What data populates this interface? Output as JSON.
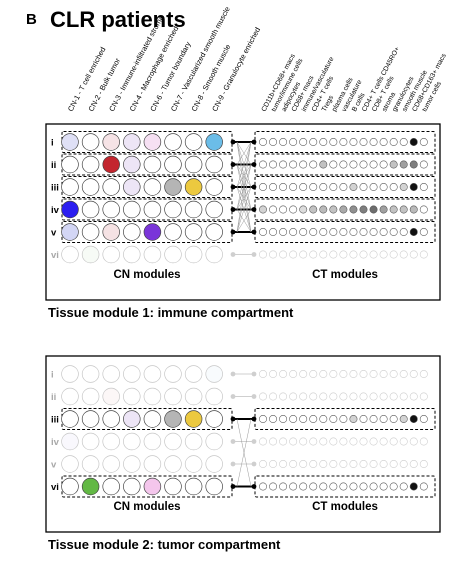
{
  "figure": {
    "panel_letter": "B",
    "title": "CLR patients"
  },
  "cn_labels": [
    "CN-1 - T cell enriched",
    "CN-2 - Bulk tumor",
    "CN-3 - Immune-infiltrated stroma",
    "CN-4 - Macrophage enriched",
    "CN-6 - Tumor boundary",
    "CN-7 - Vascularized smooth muscle",
    "CN-8 - Smooth muscle",
    "CN-9 - Granulocyte enriched"
  ],
  "ct_labels": [
    "CD11b+CD68+ macs",
    "tumor/immune cells",
    "adipocytes",
    "CD68+ macs",
    "immune/vasculature",
    "CD4+ T cells",
    "Tregs",
    "plasma cells",
    "vasculature",
    "B cells",
    "CD4+ T cells CD45RO+",
    "CD8+ T cells",
    "stroma",
    "granulocytes",
    "smooth muscle",
    "CD68+CD163+ macs",
    "tumor cells"
  ],
  "colors": {
    "cn_circles": [
      "#dcdcf7",
      "#ffffff",
      "#c4262e",
      "#e6dcf4",
      "#f0c8ec",
      "#ffffff",
      "#ffffff",
      "#69bde6"
    ],
    "blue": "#2b1ef0",
    "purple": "#7a35d9",
    "gray": "#b4b4b4",
    "yellow": "#ecc93f",
    "pink": "#f4c6ec",
    "green": "#62b844",
    "light_blue": "#e4ecfa"
  },
  "tissue_modules": [
    {
      "title": "Tissue module 1: immune compartment",
      "cn_header": "CN modules",
      "ct_header": "CT modules",
      "rows": [
        {
          "label": "i",
          "active": true,
          "cn": [
            "#dfe0f6",
            "#ffffff",
            "#f6e3e6",
            "#ede5f6",
            "#f6e0f3",
            "#ffffff",
            "#ffffff",
            "#6bbde8"
          ],
          "ct": [
            0,
            0,
            0,
            0,
            0,
            0,
            0,
            0,
            0,
            0,
            0,
            0,
            0,
            0,
            0,
            1,
            0
          ]
        },
        {
          "label": "ii",
          "active": true,
          "cn": [
            "#ffffff",
            "#ffffff",
            "#c3252e",
            "#ede5f6",
            "#ffffff",
            "#ffffff",
            "#ffffff",
            "#ffffff"
          ],
          "ct": [
            0,
            0,
            0,
            0,
            0,
            0,
            0.3,
            0,
            0,
            0,
            0,
            0,
            0,
            0.3,
            0.5,
            0.7,
            0
          ]
        },
        {
          "label": "iii",
          "active": true,
          "cn": [
            "#ffffff",
            "#ffffff",
            "#ffffff",
            "#ede5f6",
            "#ffffff",
            "#b5b5b5",
            "#ecc93f",
            "#ffffff"
          ],
          "ct": [
            0,
            0,
            0,
            0,
            0,
            0,
            0,
            0,
            0,
            0.2,
            0,
            0,
            0,
            0,
            0.2,
            1,
            0
          ]
        },
        {
          "label": "iv",
          "active": true,
          "cn": [
            "#2b1ef0",
            "#ffffff",
            "#ffffff",
            "#ffffff",
            "#ffffff",
            "#ffffff",
            "#ffffff",
            "#ffffff"
          ],
          "ct": [
            0.2,
            0,
            0,
            0,
            0.15,
            0.3,
            0.35,
            0.3,
            0.45,
            0.6,
            0.7,
            0.8,
            0.5,
            0.3,
            0.3,
            0.35,
            0
          ]
        },
        {
          "label": "v",
          "active": true,
          "cn": [
            "#d3d6f5",
            "#ffffff",
            "#f5e2e4",
            "#ffffff",
            "#7a35d9",
            "#ffffff",
            "#ffffff",
            "#ffffff"
          ],
          "ct": [
            0,
            0,
            0,
            0,
            0,
            0,
            0,
            0,
            0,
            0,
            0,
            0,
            0,
            0,
            0,
            1,
            0
          ]
        },
        {
          "label": "vi",
          "active": false,
          "cn": [
            "#ffffff",
            "#e6f3e3",
            "#ffffff",
            "#ffffff",
            "#ffffff",
            "#ffffff",
            "#ffffff",
            "#ffffff"
          ],
          "ct": [
            0,
            0,
            0,
            0,
            0,
            0,
            0,
            0,
            0,
            0,
            0,
            0,
            0,
            0,
            0,
            0,
            0
          ]
        }
      ]
    },
    {
      "title": "Tissue module 2: tumor compartment",
      "cn_header": "CN modules",
      "ct_header": "CT modules",
      "rows": [
        {
          "label": "i",
          "active": false,
          "cn": [
            "#ffffff",
            "#ffffff",
            "#ffffff",
            "#ffffff",
            "#ffffff",
            "#ffffff",
            "#ffffff",
            "#e9f3fb"
          ],
          "ct": [
            0,
            0,
            0,
            0,
            0,
            0,
            0,
            0,
            0,
            0,
            0,
            0,
            0,
            0,
            0,
            0,
            0
          ]
        },
        {
          "label": "ii",
          "active": false,
          "cn": [
            "#ffffff",
            "#ffffff",
            "#f6e6e7",
            "#ffffff",
            "#ffffff",
            "#ffffff",
            "#ffffff",
            "#ffffff"
          ],
          "ct": [
            0,
            0,
            0,
            0,
            0,
            0,
            0,
            0,
            0,
            0,
            0,
            0,
            0,
            0,
            0,
            0,
            0
          ]
        },
        {
          "label": "iii",
          "active": true,
          "cn": [
            "#ffffff",
            "#ffffff",
            "#ffffff",
            "#ede5f6",
            "#ffffff",
            "#b5b5b5",
            "#ecc93f",
            "#ffffff"
          ],
          "ct": [
            0,
            0,
            0,
            0,
            0,
            0,
            0,
            0,
            0,
            0.2,
            0,
            0,
            0,
            0,
            0.2,
            1,
            0
          ]
        },
        {
          "label": "iv",
          "active": false,
          "cn": [
            "#ecebfb",
            "#ffffff",
            "#ffffff",
            "#ffffff",
            "#ffffff",
            "#ffffff",
            "#ffffff",
            "#ffffff"
          ],
          "ct": [
            0,
            0,
            0,
            0,
            0,
            0,
            0,
            0,
            0,
            0,
            0,
            0,
            0,
            0,
            0,
            0,
            0
          ]
        },
        {
          "label": "v",
          "active": false,
          "cn": [
            "#ffffff",
            "#ffffff",
            "#ffffff",
            "#ffffff",
            "#ffffff",
            "#ffffff",
            "#ffffff",
            "#ffffff"
          ],
          "ct": [
            0,
            0,
            0,
            0,
            0,
            0,
            0,
            0,
            0,
            0,
            0,
            0,
            0,
            0,
            0,
            0,
            0
          ]
        },
        {
          "label": "vi",
          "active": true,
          "cn": [
            "#ffffff",
            "#62b844",
            "#ffffff",
            "#ffffff",
            "#f4c6ec",
            "#ffffff",
            "#ffffff",
            "#ffffff"
          ],
          "ct": [
            0,
            0,
            0,
            0,
            0,
            0,
            0,
            0,
            0,
            0,
            0,
            0,
            0,
            0,
            0,
            1,
            0
          ]
        }
      ]
    }
  ]
}
